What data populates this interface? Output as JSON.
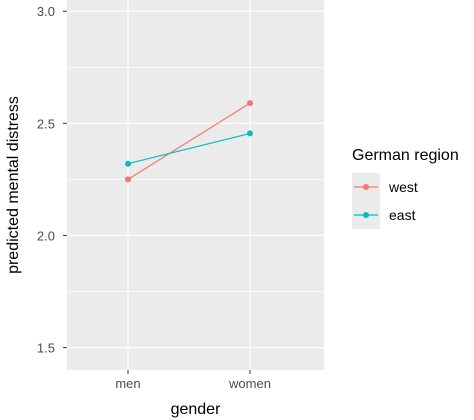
{
  "chart_data": {
    "type": "line",
    "xlabel": "gender",
    "ylabel": "predicted mental distress",
    "categories": [
      "men",
      "women"
    ],
    "ylim": [
      1.4,
      3.05
    ],
    "y_ticks": [
      "1.5",
      "2.0",
      "2.5",
      "3.0"
    ],
    "grid": true,
    "legend_position": "right",
    "legend_title": "German region",
    "series": [
      {
        "name": "west",
        "values": [
          2.25,
          2.59
        ],
        "color": "#F8766D"
      },
      {
        "name": "east",
        "values": [
          2.32,
          2.455
        ],
        "color": "#00BFC4"
      }
    ]
  },
  "colors": {
    "panel_background": "#EBEBEB",
    "grid_line": "#FFFFFF",
    "legend_key_background": "#EBEBEB"
  }
}
